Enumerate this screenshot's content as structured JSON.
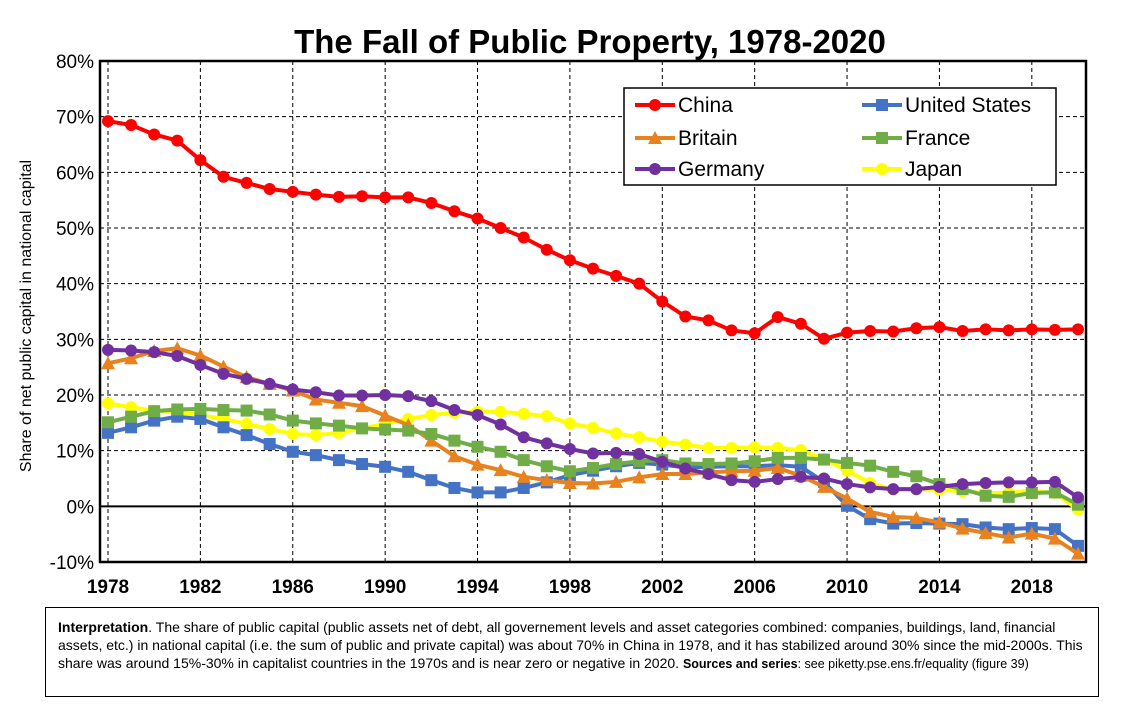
{
  "chart_data": {
    "type": "line",
    "title": "The Fall of Public Property, 1978-2020",
    "ylabel": "Share of net public capital in national capital",
    "xlabel": "",
    "xlim": [
      1978,
      2020
    ],
    "ylim": [
      -0.1,
      0.8
    ],
    "y_ticks": [
      "80%",
      "70%",
      "60%",
      "50%",
      "40%",
      "30%",
      "20%",
      "10%",
      "0%",
      "-10%"
    ],
    "y_tick_values": [
      0.8,
      0.7,
      0.6,
      0.5,
      0.4,
      0.3,
      0.2,
      0.1,
      0.0,
      -0.1
    ],
    "x_ticks": [
      "1978",
      "1982",
      "1986",
      "1990",
      "1994",
      "1998",
      "2002",
      "2006",
      "2010",
      "2014",
      "2018"
    ],
    "x_tick_values": [
      1978,
      1982,
      1986,
      1990,
      1994,
      1998,
      2002,
      2006,
      2010,
      2014,
      2018
    ],
    "grid": "dashed",
    "legend_placement": "top-right",
    "x": [
      1978,
      1979,
      1980,
      1981,
      1982,
      1983,
      1984,
      1985,
      1986,
      1987,
      1988,
      1989,
      1990,
      1991,
      1992,
      1993,
      1994,
      1995,
      1996,
      1997,
      1998,
      1999,
      2000,
      2001,
      2002,
      2003,
      2004,
      2005,
      2006,
      2007,
      2008,
      2009,
      2010,
      2011,
      2012,
      2013,
      2014,
      2015,
      2016,
      2017,
      2018,
      2019,
      2020
    ],
    "series": [
      {
        "name": "China",
        "color": "#ff0000",
        "marker": "circle",
        "values": [
          0.692,
          0.685,
          0.668,
          0.657,
          0.622,
          0.592,
          0.581,
          0.57,
          0.565,
          0.56,
          0.556,
          0.557,
          0.555,
          0.555,
          0.545,
          0.53,
          0.517,
          0.5,
          0.483,
          0.461,
          0.442,
          0.427,
          0.414,
          0.4,
          0.368,
          0.341,
          0.334,
          0.316,
          0.311,
          0.34,
          0.328,
          0.301,
          0.312,
          0.315,
          0.314,
          0.32,
          0.322,
          0.315,
          0.318,
          0.316,
          0.318,
          0.317,
          0.318
        ]
      },
      {
        "name": "United States",
        "color": "#4472c4",
        "marker": "square",
        "values": [
          0.132,
          0.142,
          0.154,
          0.161,
          0.157,
          0.142,
          0.128,
          0.112,
          0.098,
          0.092,
          0.083,
          0.076,
          0.071,
          0.062,
          0.047,
          0.033,
          0.025,
          0.025,
          0.033,
          0.043,
          0.056,
          0.064,
          0.072,
          0.078,
          0.075,
          0.07,
          0.071,
          0.072,
          0.072,
          0.074,
          0.071,
          0.044,
          0.001,
          -0.023,
          -0.031,
          -0.03,
          -0.031,
          -0.032,
          -0.038,
          -0.041,
          -0.039,
          -0.041,
          -0.071
        ]
      },
      {
        "name": "Britain",
        "color": "#e8821e",
        "marker": "triangle",
        "values": [
          0.257,
          0.266,
          0.279,
          0.284,
          0.271,
          0.251,
          0.232,
          0.22,
          0.208,
          0.192,
          0.186,
          0.18,
          0.163,
          0.146,
          0.118,
          0.09,
          0.075,
          0.065,
          0.053,
          0.047,
          0.042,
          0.041,
          0.044,
          0.052,
          0.058,
          0.058,
          0.061,
          0.063,
          0.064,
          0.069,
          0.055,
          0.035,
          0.014,
          -0.01,
          -0.019,
          -0.021,
          -0.029,
          -0.04,
          -0.048,
          -0.056,
          -0.049,
          -0.058,
          -0.085
        ]
      },
      {
        "name": "France",
        "color": "#70ad47",
        "marker": "square",
        "values": [
          0.151,
          0.161,
          0.171,
          0.174,
          0.175,
          0.173,
          0.172,
          0.165,
          0.154,
          0.149,
          0.145,
          0.14,
          0.138,
          0.136,
          0.13,
          0.118,
          0.107,
          0.098,
          0.083,
          0.072,
          0.063,
          0.069,
          0.076,
          0.081,
          0.083,
          0.077,
          0.076,
          0.077,
          0.081,
          0.087,
          0.087,
          0.084,
          0.078,
          0.073,
          0.062,
          0.054,
          0.04,
          0.031,
          0.019,
          0.017,
          0.024,
          0.025,
          0.003
        ]
      },
      {
        "name": "Germany",
        "color": "#7030a0",
        "marker": "circle",
        "values": [
          0.281,
          0.28,
          0.277,
          0.27,
          0.254,
          0.238,
          0.229,
          0.22,
          0.21,
          0.205,
          0.199,
          0.199,
          0.2,
          0.198,
          0.189,
          0.173,
          0.164,
          0.147,
          0.124,
          0.113,
          0.103,
          0.095,
          0.096,
          0.094,
          0.08,
          0.068,
          0.058,
          0.047,
          0.044,
          0.049,
          0.053,
          0.05,
          0.04,
          0.034,
          0.031,
          0.031,
          0.035,
          0.04,
          0.042,
          0.043,
          0.043,
          0.044,
          0.016
        ]
      },
      {
        "name": "Japan",
        "color": "#ffff00",
        "marker": "circle",
        "values": [
          0.185,
          0.178,
          0.172,
          0.169,
          0.164,
          0.157,
          0.148,
          0.139,
          0.13,
          0.128,
          0.132,
          0.14,
          0.148,
          0.157,
          0.164,
          0.168,
          0.17,
          0.17,
          0.166,
          0.162,
          0.149,
          0.141,
          0.131,
          0.124,
          0.116,
          0.111,
          0.105,
          0.105,
          0.106,
          0.105,
          0.101,
          0.085,
          0.064,
          0.042,
          0.03,
          0.03,
          0.03,
          0.027,
          0.024,
          0.024,
          0.028,
          0.024,
          -0.006
        ]
      }
    ]
  },
  "legend": {
    "items": [
      "China",
      "United States",
      "Britain",
      "France",
      "Germany",
      "Japan"
    ]
  },
  "note": {
    "label": "Interpretation",
    "text": ". The share of public capital (public assets net of debt, all governement levels and asset categories combined: companies, buildings, land, financial assets, etc.) in national capital (i.e. the sum of public and private capital) was about 70% in China in 1978, and it has stabilized around 30% since the mid-2000s. This share was around 15%-30% in capitalist countries in the 1970s and is near zero or negative in 2020. ",
    "sources_label": "Sources and series",
    "sources_text": ": see piketty.pse.ens.fr/equality (figure 39)"
  }
}
